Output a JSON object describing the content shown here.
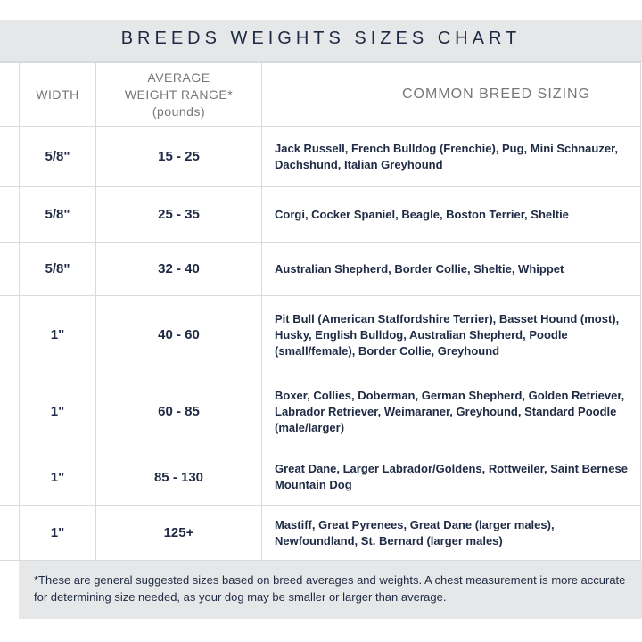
{
  "title": "BREEDS WEIGHTS SIZES CHART",
  "columns": {
    "width": "WIDTH",
    "weight_line1": "AVERAGE",
    "weight_line2": "WEIGHT RANGE*",
    "weight_line3": "(pounds)",
    "breeds": "COMMON BREED SIZING"
  },
  "rows": [
    {
      "width": "5/8\"",
      "weight": "15 - 25",
      "breeds1": "Jack Russell, French Bulldog (Frenchie), Pug, Mini Schnauzer,",
      "breeds2": "Dachshund, Italian Greyhound",
      "breeds3": ""
    },
    {
      "width": "5/8\"",
      "weight": "25 - 35",
      "breeds1": "Corgi, Cocker Spaniel, Beagle, Boston Terrier, Sheltie",
      "breeds2": "",
      "breeds3": ""
    },
    {
      "width": "5/8\"",
      "weight": "32 - 40",
      "breeds1": "Australian Shepherd, Border Collie, Sheltie, Whippet",
      "breeds2": "",
      "breeds3": ""
    },
    {
      "width": "1\"",
      "weight": "40 - 60",
      "breeds1": "Pit Bull (American Staffordshire Terrier), Basset Hound",
      "breeds2": "(most), Husky, English Bulldog, Australian Shepherd,",
      "breeds3": "Poodle (small/female), Border Collie, Greyhound"
    },
    {
      "width": "1\"",
      "weight": "60 - 85",
      "breeds1": "Boxer, Collies, Doberman, German Shepherd, Golden Retriever,",
      "breeds2": "Labrador Retriever, Weimaraner, Greyhound, Standard Poodle",
      "breeds3": "(male/larger)"
    },
    {
      "width": "1\"",
      "weight": "85 - 130",
      "breeds1": "Great Dane, Larger Labrador/Goldens, Rottweiler, Saint",
      "breeds2": "Bernese Mountain Dog",
      "breeds3": ""
    },
    {
      "width": "1\"",
      "weight": "125+",
      "breeds1": "Mastiff, Great Pyrenees, Great Dane (larger males), Newfoundland,",
      "breeds2": "St. Bernard (larger males)",
      "breeds3": ""
    }
  ],
  "footer": {
    "line1": "*These are general suggested sizes based on breed averages and weights.  A chest measurement is",
    "line2": "more accurate for determining size needed, as your dog may be smaller or larger than average."
  }
}
